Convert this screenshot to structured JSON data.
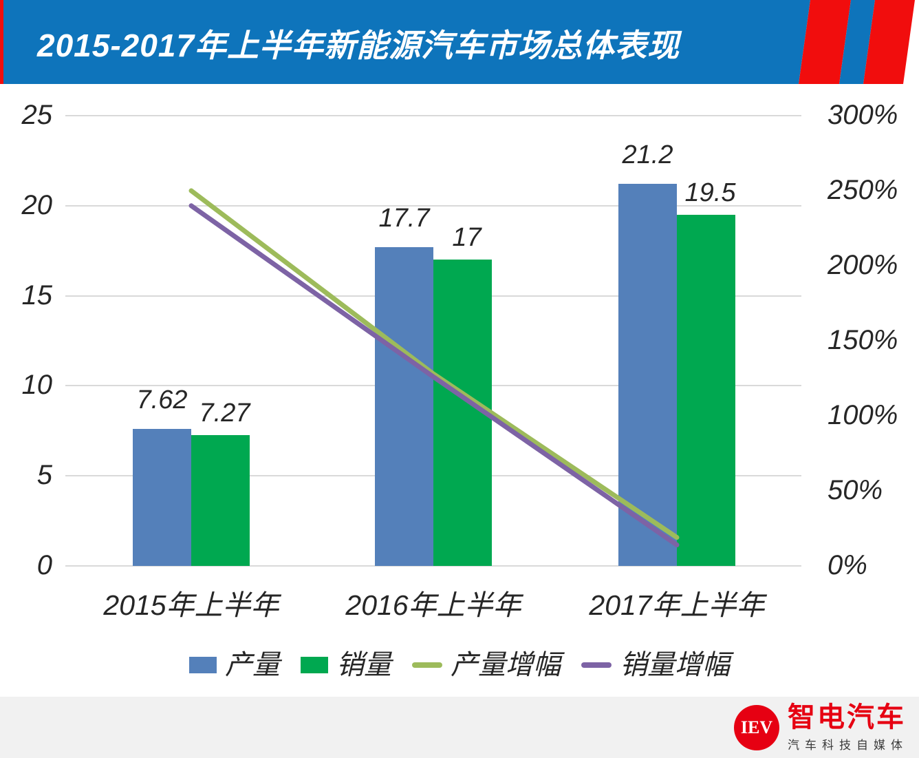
{
  "header": {
    "title": "2015-2017年上半年新能源汽车市场总体表现"
  },
  "chart_data": {
    "type": "combo-bar-line",
    "categories": [
      "2015年上半年",
      "2016年上半年",
      "2017年上半年"
    ],
    "bar_series": [
      {
        "id": "production",
        "name": "产量",
        "color": "#5480BA",
        "values": [
          7.62,
          17.7,
          21.2
        ]
      },
      {
        "id": "sales",
        "name": "销量",
        "color": "#00A850",
        "values": [
          7.27,
          17,
          19.5
        ]
      }
    ],
    "line_series": [
      {
        "id": "production-growth",
        "name": "产量增幅",
        "color": "#9DBB5B",
        "values_pct": [
          250,
          128,
          19
        ]
      },
      {
        "id": "sales-growth",
        "name": "销量增幅",
        "color": "#7D63A5",
        "values_pct": [
          240,
          126,
          14
        ]
      }
    ],
    "y_left": {
      "min": 0,
      "max": 25,
      "ticks": [
        25,
        20,
        15,
        10,
        5,
        0
      ]
    },
    "y_right": {
      "min": 0,
      "max": 300,
      "ticks": [
        300,
        250,
        200,
        150,
        100,
        50,
        0
      ],
      "suffix": "%"
    },
    "grid": true,
    "legend_position": "bottom"
  },
  "footer": {
    "logo_monogram": "IEV",
    "logo_name": "智电汽车",
    "logo_tagline": "汽车科技自媒体"
  },
  "colors": {
    "header_blue": "#0E74BB",
    "stripe_red": "#F10D0D",
    "footer_bg": "#F1F1F1",
    "logo_red": "#E60012",
    "gridline": "#D9D9D9",
    "text": "#262626"
  }
}
